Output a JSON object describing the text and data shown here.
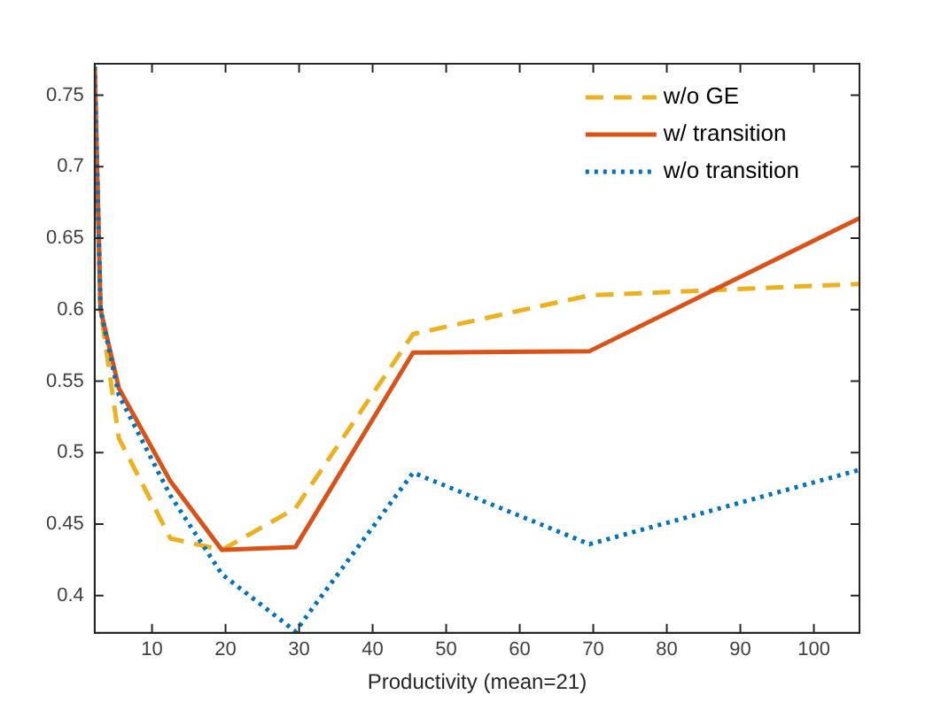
{
  "chart_data": {
    "type": "line",
    "xlabel": "Productivity (mean=21)",
    "xlim": [
      2.2,
      106.2
    ],
    "xticks": [
      10,
      20,
      30,
      40,
      50,
      60,
      70,
      80,
      90,
      100
    ],
    "ylim": [
      0.374,
      0.772
    ],
    "yticks": [
      0.4,
      0.45,
      0.5,
      0.55,
      0.6,
      0.65,
      0.7,
      0.75
    ],
    "grid": false,
    "legend": "top right",
    "marker": "none",
    "series": [
      {
        "name": "w/o GE",
        "color": "#edb120",
        "line_style": "dashed",
        "x": [
          2.2,
          3,
          5.5,
          12.5,
          19.5,
          29.5,
          45.5,
          69.5,
          106.2
        ],
        "values": [
          0.77,
          0.6,
          0.51,
          0.44,
          0.432,
          0.461,
          0.583,
          0.61,
          0.618
        ]
      },
      {
        "name": "w/ transition",
        "color": "#d95319",
        "line_style": "solid",
        "x": [
          2.2,
          3,
          5.5,
          12.5,
          19.5,
          29.5,
          45.5,
          69.5,
          106.2
        ],
        "values": [
          0.77,
          0.6,
          0.545,
          0.48,
          0.432,
          0.434,
          0.57,
          0.571,
          0.664
        ]
      },
      {
        "name": "w/o transition",
        "color": "#0072bd",
        "line_style": "dotted",
        "x": [
          2.2,
          3,
          5.5,
          12.5,
          19.5,
          29.5,
          45.5,
          69.5,
          106.2
        ],
        "values": [
          0.77,
          0.6,
          0.54,
          0.47,
          0.415,
          0.375,
          0.486,
          0.436,
          0.488
        ]
      }
    ]
  }
}
